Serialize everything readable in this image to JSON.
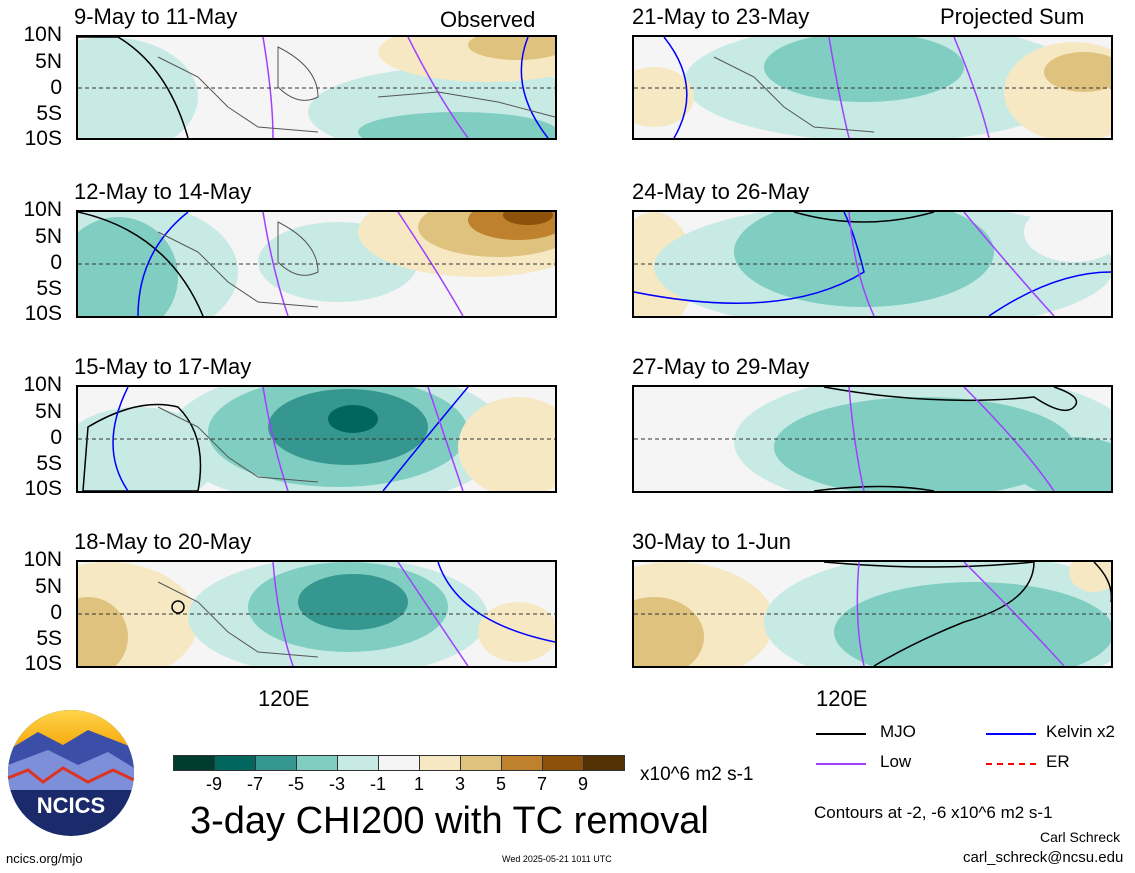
{
  "panels": [
    {
      "title": "9-May to 11-May",
      "tag": "Observed"
    },
    {
      "title": "12-May to 14-May",
      "tag": ""
    },
    {
      "title": "15-May to 17-May",
      "tag": ""
    },
    {
      "title": "18-May to 20-May",
      "tag": ""
    },
    {
      "title": "21-May to 23-May",
      "tag": "Projected Sum"
    },
    {
      "title": "24-May to 26-May",
      "tag": ""
    },
    {
      "title": "27-May to 29-May",
      "tag": ""
    },
    {
      "title": "30-May to 1-Jun",
      "tag": ""
    }
  ],
  "lat_labels": [
    "10N",
    "5N",
    "0",
    "5S",
    "10S"
  ],
  "lon_label": "120E",
  "colorbar": {
    "colors": [
      "#003c30",
      "#01665e",
      "#35978f",
      "#80cdc1",
      "#c7eae5",
      "#f5f5f5",
      "#f6e8c3",
      "#dfc27d",
      "#bf812d",
      "#8c510a",
      "#543005"
    ],
    "tick_labels": [
      "-9",
      "-7",
      "-5",
      "-3",
      "-1",
      "1",
      "3",
      "5",
      "7",
      "9"
    ],
    "units": "x10^6 m2 s-1"
  },
  "legend": {
    "mjo": {
      "label": "MJO",
      "color": "#000000"
    },
    "kelvin": {
      "label": "Kelvin x2",
      "color": "#0000ff"
    },
    "low": {
      "label": "Low",
      "color": "#a040ff"
    },
    "er": {
      "label": "ER",
      "color": "#ff0000"
    }
  },
  "main_title": "3-day CHI200 with TC removal",
  "contours_note": "Contours at -2, -6 x10^6 m2 s-1",
  "author": "Carl Schreck",
  "email": "carl_schreck@ncsu.edu",
  "url": "ncics.org/mjo",
  "timestamp": "Wed 2025-05-21 1011 UTC",
  "logo_text": "NCICS"
}
